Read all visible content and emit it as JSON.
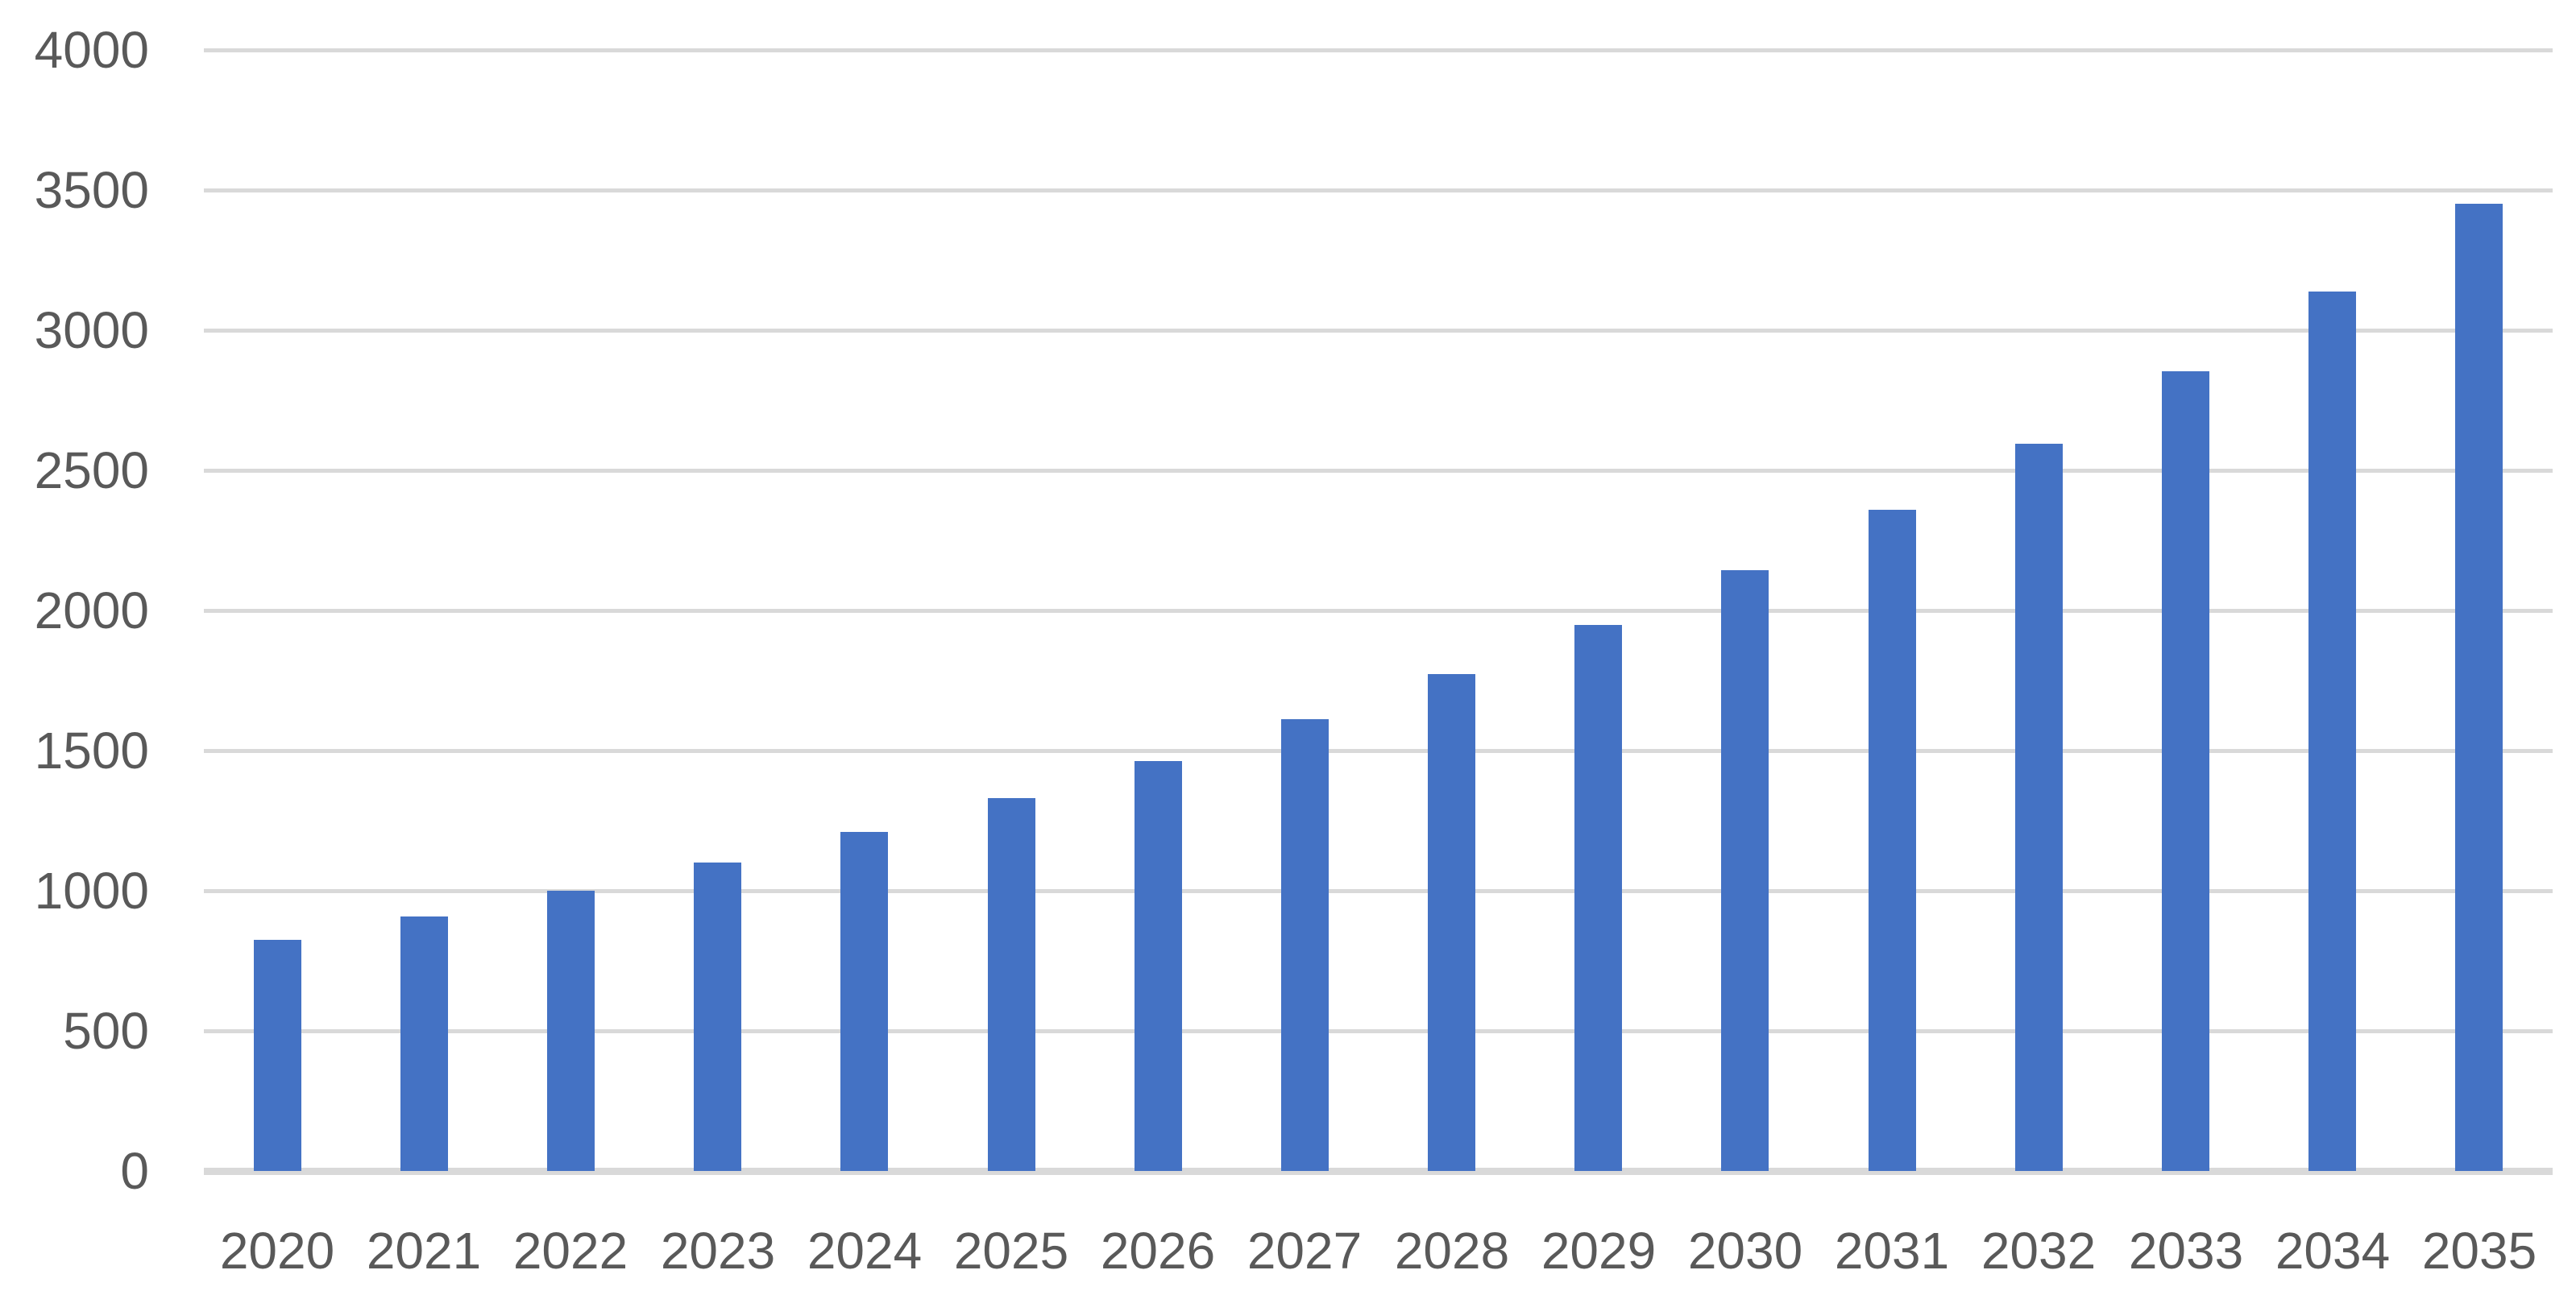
{
  "chart_data": {
    "type": "bar",
    "title": "",
    "xlabel": "",
    "ylabel": "",
    "categories": [
      "2020",
      "2021",
      "2022",
      "2023",
      "2024",
      "2025",
      "2026",
      "2027",
      "2028",
      "2029",
      "2030",
      "2031",
      "2032",
      "2033",
      "2034",
      "2035"
    ],
    "values": [
      826,
      909,
      1000,
      1100,
      1210,
      1331,
      1464,
      1611,
      1772,
      1949,
      2144,
      2358,
      2594,
      2853,
      3138,
      3452
    ],
    "ylim": [
      0,
      4000
    ],
    "ytick_step": 500,
    "ytick_labels": [
      "0",
      "500",
      "1000",
      "1500",
      "2000",
      "2500",
      "3000",
      "3500",
      "4000"
    ],
    "grid": "horizontal-only",
    "legend": "none",
    "colors": {
      "bar_fill": "#4472C4",
      "gridline": "#D9D9D9",
      "axis_line": "#D9D9D9",
      "tick_label": "#595959",
      "background": "#FFFFFF"
    }
  }
}
